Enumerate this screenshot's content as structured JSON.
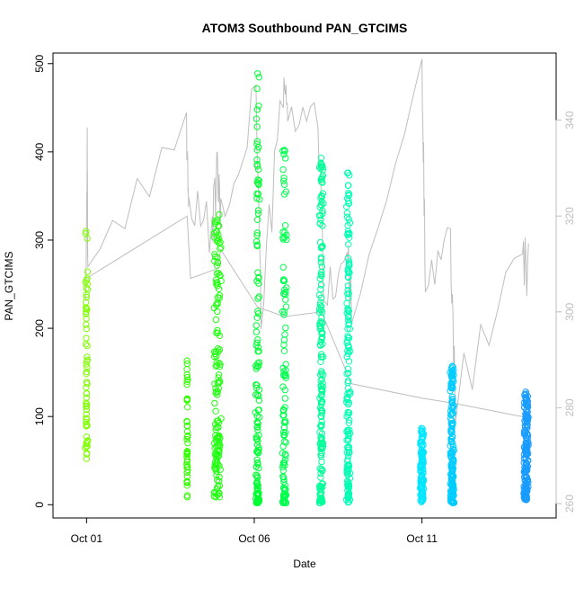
{
  "chart_data": {
    "type": "scatter",
    "title": "ATOM3 Southbound PAN_GTCIMS",
    "xlabel": "Date",
    "ylabel": "PAN_GTCIMS",
    "x_ticks": [
      {
        "label": "Oct 01",
        "day": 1.0
      },
      {
        "label": "Oct 06",
        "day": 6.0
      },
      {
        "label": "Oct 11",
        "day": 11.0
      }
    ],
    "xlim_days": [
      0.0,
      15.0
    ],
    "ylim": [
      -15,
      512
    ],
    "y_ticks": [
      0,
      100,
      200,
      300,
      400,
      500
    ],
    "y2_ticks": [
      260,
      280,
      300,
      320,
      340
    ],
    "y2lim": [
      257,
      354
    ],
    "grid": false,
    "secondary_line_color": "#bebebe",
    "marker": "open-circle",
    "clusters": [
      {
        "day_center": 1.0,
        "day_spread": 0.04,
        "color": "#80ff00",
        "n": 60,
        "ymin": 40,
        "ymax": 312,
        "lower_bias": 0.9,
        "seed": 11
      },
      {
        "day_center": 4.0,
        "day_spread": 0.02,
        "color": "#33ff00",
        "n": 45,
        "ymin": 8,
        "ymax": 165,
        "lower_bias": 1.0,
        "seed": 12
      },
      {
        "day_center": 4.9,
        "day_spread": 0.12,
        "color": "#22ff11",
        "n": 150,
        "ymin": 8,
        "ymax": 330,
        "lower_bias": 1.2,
        "seed": 13
      },
      {
        "day_center": 6.1,
        "day_spread": 0.07,
        "color": "#00ff33",
        "n": 130,
        "ymin": 2,
        "ymax": 490,
        "lower_bias": 2.0,
        "seed": 14
      },
      {
        "day_center": 6.9,
        "day_spread": 0.07,
        "color": "#00ff4d",
        "n": 110,
        "ymin": 2,
        "ymax": 410,
        "lower_bias": 2.0,
        "seed": 15
      },
      {
        "day_center": 8.0,
        "day_spread": 0.07,
        "color": "#00ff99",
        "n": 170,
        "ymin": 2,
        "ymax": 395,
        "lower_bias": 1.3,
        "seed": 16
      },
      {
        "day_center": 8.8,
        "day_spread": 0.06,
        "color": "#00ffb3",
        "n": 150,
        "ymin": 2,
        "ymax": 382,
        "lower_bias": 1.3,
        "seed": 17
      },
      {
        "day_center": 11.0,
        "day_spread": 0.06,
        "color": "#00e6ff",
        "n": 100,
        "ymin": 2,
        "ymax": 88,
        "lower_bias": 1.0,
        "seed": 18
      },
      {
        "day_center": 11.9,
        "day_spread": 0.07,
        "color": "#00ccff",
        "n": 160,
        "ymin": 2,
        "ymax": 158,
        "lower_bias": 1.4,
        "seed": 19
      },
      {
        "day_center": 14.1,
        "day_spread": 0.08,
        "color": "#1a9cff",
        "n": 170,
        "ymin": 5,
        "ymax": 128,
        "lower_bias": 1.2,
        "seed": 20
      }
    ],
    "secondary_series": {
      "axis": "right",
      "color": "#bebebe",
      "trace_days": [
        0.98,
        1.02,
        1.04,
        3.98,
        4.05,
        4.75,
        4.9,
        5.0,
        6.05,
        6.2,
        6.85,
        7.0,
        7.9,
        8.1,
        8.75,
        8.9,
        11.0,
        11.1,
        11.85,
        12.0,
        14.0,
        14.2
      ],
      "trace_values": [
        305,
        334,
        305,
        340,
        321,
        317,
        330,
        318,
        346,
        300,
        345,
        343,
        340,
        301,
        314,
        299,
        350,
        310,
        313,
        282,
        311,
        308
      ],
      "connector_days": [
        1.0,
        4.0,
        4.1,
        4.9,
        5.0,
        6.1,
        6.9,
        8.0,
        8.9,
        11.0,
        11.9,
        14.1
      ],
      "connector_values": [
        307,
        320,
        307,
        309,
        313,
        301,
        299,
        300,
        285,
        282,
        281,
        278
      ]
    }
  }
}
